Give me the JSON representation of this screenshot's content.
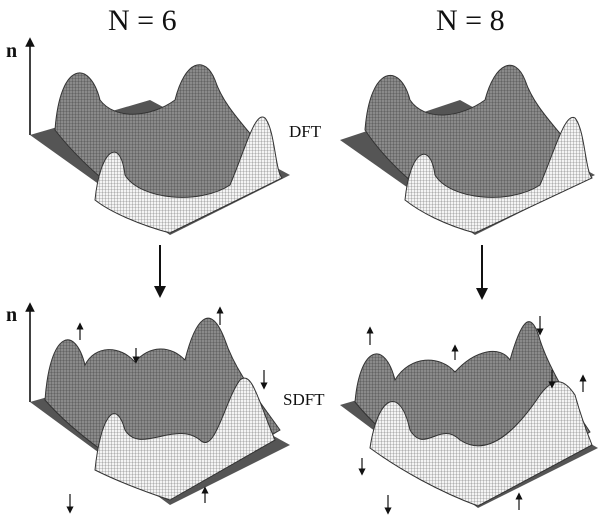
{
  "figure": {
    "columns": [
      {
        "title": "N = 6"
      },
      {
        "title": "N = 8"
      }
    ],
    "axis_label": "n",
    "rows": [
      {
        "method": "DFT"
      },
      {
        "method": "SDFT"
      }
    ],
    "spin_arrows": {
      "N6_SDFT": [
        "up",
        "down",
        "up",
        "down",
        "down",
        "up"
      ],
      "N8_SDFT": [
        "up",
        "up",
        "down",
        "down",
        "up",
        "down",
        "down",
        "up"
      ]
    }
  }
}
